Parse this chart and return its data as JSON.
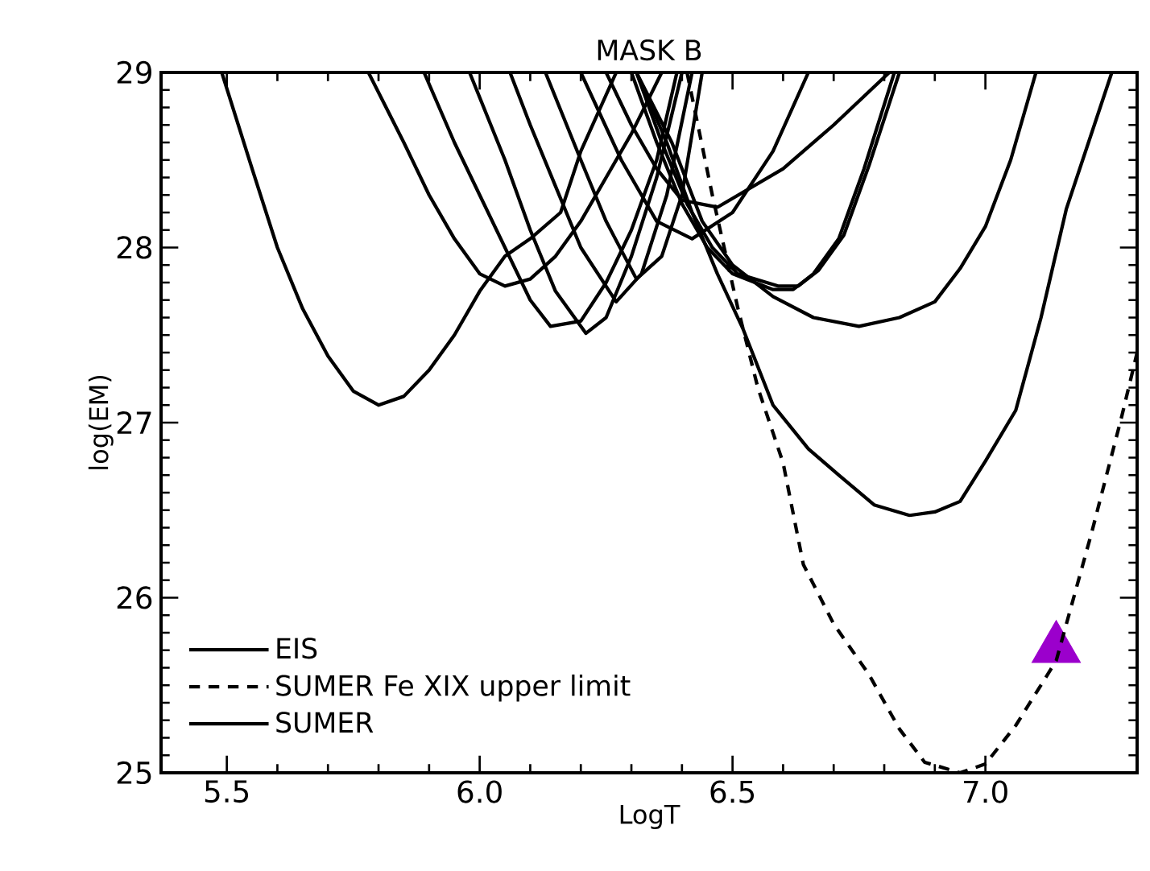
{
  "chart_data": {
    "type": "line",
    "title": "MASK B",
    "xlabel": "LogT",
    "ylabel": "log(EM)",
    "xlim": [
      5.37,
      7.3
    ],
    "ylim": [
      25,
      29
    ],
    "xticks": [
      {
        "value": 5.5,
        "label": "5.5"
      },
      {
        "value": 6,
        "label": "6.0"
      },
      {
        "value": 6.5,
        "label": "6.5"
      },
      {
        "value": 7,
        "label": "7.0"
      }
    ],
    "yticks": [
      25,
      26,
      27,
      28,
      29
    ],
    "legend": "bottom left",
    "grid": false,
    "series": [
      {
        "name": "EIS",
        "color": "#000000",
        "line_style": "solid",
        "x": [
          5.49,
          5.55,
          5.6,
          5.65,
          5.7,
          5.75,
          5.8,
          5.85,
          5.9,
          5.95,
          6.0,
          6.05,
          6.1,
          6.16,
          6.2,
          6.27
        ],
        "values": [
          29,
          28.45,
          28.0,
          27.65,
          27.38,
          27.18,
          27.1,
          27.15,
          27.3,
          27.5,
          27.75,
          27.95,
          28.05,
          28.2,
          28.55,
          29
        ]
      },
      {
        "name": "SUMER Fe XIX upper limit",
        "color": "#000000",
        "line_style": "dashed",
        "x": [
          6.41,
          6.46,
          6.51,
          6.55,
          6.6,
          6.64,
          6.7,
          6.77,
          6.83,
          6.88,
          6.95,
          7.0,
          7.06,
          7.14,
          7.21,
          7.27,
          7.3
        ],
        "values": [
          29,
          28.3,
          27.66,
          27.2,
          26.77,
          26.19,
          25.85,
          25.56,
          25.25,
          25.06,
          25.0,
          25.05,
          25.27,
          25.64,
          26.37,
          27.04,
          27.4
        ]
      },
      {
        "name": "SUMER",
        "color": "#000000",
        "line_style": "solid",
        "x": [
          6.31,
          6.37,
          6.42,
          6.47,
          6.52,
          6.58,
          6.65,
          6.71,
          6.78,
          6.85,
          6.9,
          6.95,
          7.0,
          7.06,
          7.11,
          7.16,
          7.25
        ],
        "values": [
          29,
          28.6,
          28.2,
          27.85,
          27.54,
          27.1,
          26.85,
          26.7,
          26.53,
          26.47,
          26.49,
          26.55,
          26.78,
          27.07,
          27.6,
          28.22,
          29
        ]
      },
      {
        "color": "#000000",
        "line_style": "solid",
        "x": [
          5.78,
          5.85,
          5.9,
          5.95,
          6.0,
          6.05,
          6.1,
          6.15,
          6.2,
          6.25,
          6.3,
          6.36
        ],
        "values": [
          29,
          28.6,
          28.3,
          28.05,
          27.85,
          27.78,
          27.82,
          27.95,
          28.15,
          28.4,
          28.65,
          29
        ]
      },
      {
        "color": "#000000",
        "line_style": "solid",
        "x": [
          5.89,
          5.95,
          6.0,
          6.05,
          6.1,
          6.14,
          6.2,
          6.25,
          6.3,
          6.35,
          6.39
        ],
        "values": [
          29,
          28.6,
          28.3,
          28.0,
          27.7,
          27.55,
          27.58,
          27.8,
          28.1,
          28.5,
          29
        ]
      },
      {
        "color": "#000000",
        "line_style": "solid",
        "x": [
          5.98,
          6.05,
          6.1,
          6.15,
          6.21,
          6.25,
          6.3,
          6.35,
          6.4
        ],
        "values": [
          29,
          28.5,
          28.1,
          27.75,
          27.51,
          27.6,
          27.95,
          28.4,
          29
        ]
      },
      {
        "color": "#000000",
        "line_style": "solid",
        "x": [
          6.06,
          6.1,
          6.15,
          6.2,
          6.27,
          6.32,
          6.37,
          6.42
        ],
        "values": [
          29,
          28.7,
          28.35,
          28.0,
          27.69,
          27.85,
          28.3,
          29
        ]
      },
      {
        "color": "#000000",
        "line_style": "solid",
        "x": [
          6.13,
          6.2,
          6.25,
          6.31,
          6.36,
          6.4,
          6.44
        ],
        "values": [
          29,
          28.5,
          28.15,
          27.82,
          27.95,
          28.3,
          29
        ]
      },
      {
        "color": "#000000",
        "line_style": "solid",
        "x": [
          6.3,
          6.35,
          6.4,
          6.45,
          6.5,
          6.58,
          6.62,
          6.66,
          6.71,
          6.76,
          6.82
        ],
        "values": [
          29,
          28.6,
          28.25,
          28.0,
          27.85,
          27.76,
          27.76,
          27.85,
          28.05,
          28.45,
          29
        ]
      },
      {
        "color": "#000000",
        "line_style": "solid",
        "x": [
          6.31,
          6.36,
          6.41,
          6.46,
          6.51,
          6.59,
          6.63,
          6.67,
          6.72,
          6.77,
          6.83
        ],
        "values": [
          29,
          28.6,
          28.25,
          28.0,
          27.85,
          27.78,
          27.78,
          27.87,
          28.07,
          28.47,
          29
        ]
      },
      {
        "color": "#000000",
        "line_style": "solid",
        "x": [
          6.31,
          6.38,
          6.44,
          6.5,
          6.58,
          6.66,
          6.75,
          6.83,
          6.9,
          6.95,
          7.0,
          7.05,
          7.1
        ],
        "values": [
          29,
          28.6,
          28.15,
          27.9,
          27.72,
          27.6,
          27.55,
          27.6,
          27.69,
          27.88,
          28.12,
          28.5,
          29
        ]
      },
      {
        "color": "#000000",
        "line_style": "solid",
        "x": [
          6.25,
          6.3,
          6.35,
          6.4,
          6.47,
          6.6,
          6.7,
          6.81
        ],
        "values": [
          29,
          28.7,
          28.45,
          28.27,
          28.23,
          28.45,
          28.7,
          29
        ]
      },
      {
        "color": "#000000",
        "line_style": "solid",
        "x": [
          6.2,
          6.28,
          6.35,
          6.42,
          6.5,
          6.58,
          6.65
        ],
        "values": [
          29,
          28.5,
          28.15,
          28.05,
          28.2,
          28.55,
          29
        ]
      },
      {
        "type": "scatter",
        "color": "#9b00cc",
        "marker": "triangle",
        "x": [
          7.14
        ],
        "values": [
          25.71
        ]
      }
    ]
  }
}
